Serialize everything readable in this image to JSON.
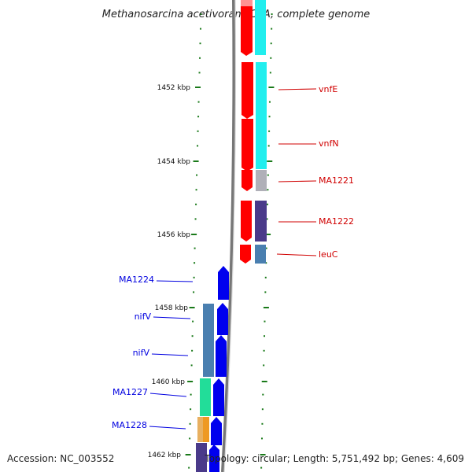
{
  "title": "Methanosarcina acetivorans C2A, complete genome",
  "accession": "Accession: NC_003552",
  "summary": "Topology: circular; Length: 5,751,492 bp; Genes: 4,609",
  "ticks": [
    "1452 kbp",
    "1454 kbp",
    "1456 kbp",
    "1458 kbp",
    "1460 kbp",
    "1462 kbp"
  ],
  "forward_labels": [
    "vnfE",
    "vnfN",
    "MA1221",
    "MA1222",
    "leuC"
  ],
  "reverse_labels": [
    "MA1224",
    "nifV",
    "nifV",
    "MA1227",
    "MA1228"
  ],
  "colors": {
    "forward_cds": "#ff0000",
    "reverse_cds": "#0000ee",
    "cyan": "#22eeee",
    "grey": "#b0b0b8",
    "purple": "#4a3a8a",
    "steelblue": "#4a7fb0",
    "green": "#22dd99",
    "orange": "#ee9922",
    "tick": "#1a7a1a",
    "backbone": "#888888"
  }
}
